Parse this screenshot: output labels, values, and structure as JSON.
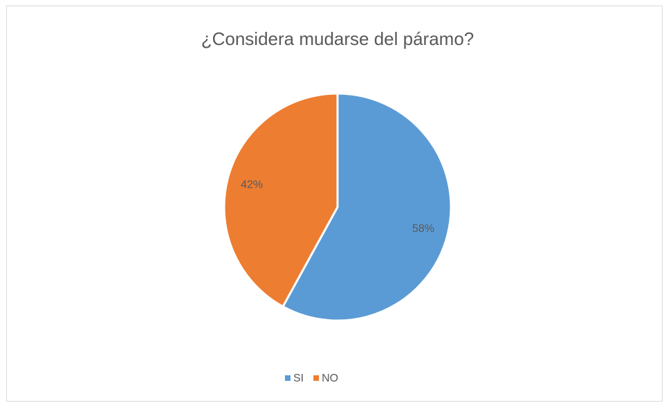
{
  "chart_data": {
    "type": "pie",
    "title": "¿Considera mudarse del páramo?",
    "categories": [
      "SI",
      "NO"
    ],
    "values": [
      58,
      42
    ],
    "value_labels": [
      "58%",
      "42%"
    ],
    "colors": [
      "#5b9bd5",
      "#ed7d31"
    ],
    "legend": "bottom"
  }
}
